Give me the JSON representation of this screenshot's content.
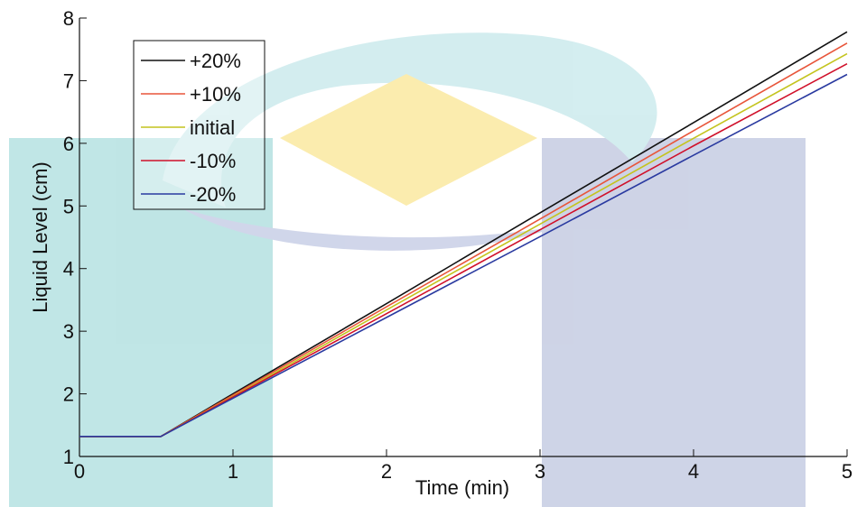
{
  "chart_data": {
    "type": "line",
    "xlabel": "Time (min)",
    "ylabel": "Liquid Level (cm)",
    "x": [
      0,
      0.53,
      1,
      2,
      3,
      4,
      5
    ],
    "series": [
      {
        "name": "+20%",
        "color": "#111111",
        "values": [
          1.32,
          1.32,
          2.0,
          3.44,
          4.89,
          6.33,
          7.78
        ]
      },
      {
        "name": "+10%",
        "color": "#e8553a",
        "values": [
          1.32,
          1.32,
          1.98,
          3.39,
          4.79,
          6.2,
          7.6
        ]
      },
      {
        "name": "initial",
        "color": "#c4c41e",
        "values": [
          1.32,
          1.32,
          1.96,
          3.34,
          4.71,
          6.08,
          7.43
        ]
      },
      {
        "name": "-10%",
        "color": "#d0102a",
        "values": [
          1.32,
          1.32,
          1.95,
          3.28,
          4.62,
          5.96,
          7.27
        ]
      },
      {
        "name": "-20%",
        "color": "#2a3aa0",
        "values": [
          1.32,
          1.32,
          1.93,
          3.22,
          4.51,
          5.81,
          7.1
        ]
      }
    ],
    "xlim": [
      0,
      5
    ],
    "xticks": [
      0,
      1,
      2,
      3,
      4,
      5
    ],
    "ylim": [
      1,
      8
    ],
    "yticks": [
      1,
      2,
      3,
      4,
      5,
      6,
      7,
      8
    ],
    "legend": "upper-left",
    "grid": false
  }
}
